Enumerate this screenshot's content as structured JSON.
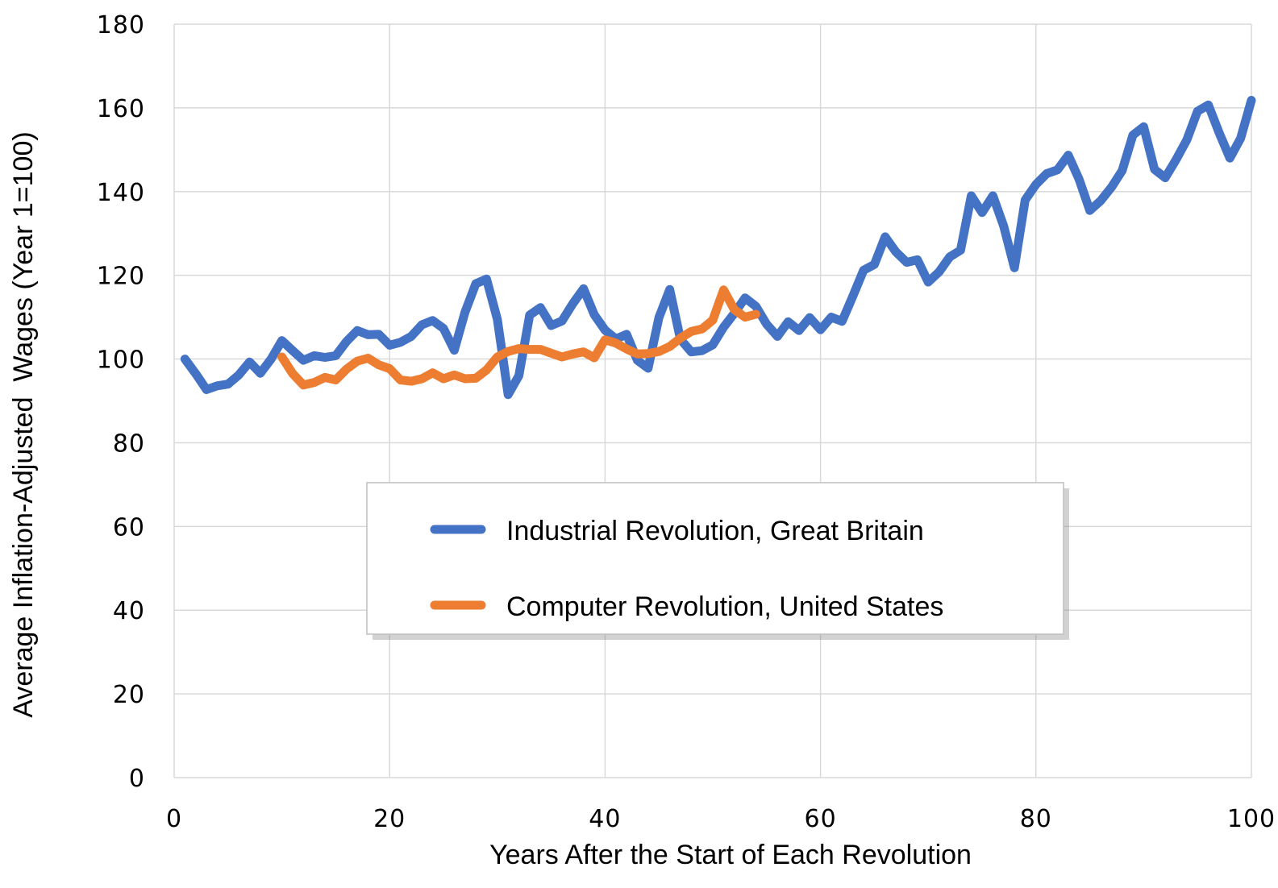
{
  "chart_data": {
    "type": "line",
    "title": "",
    "xlabel": "Years After the Start of Each Revolution",
    "ylabel": "Average Inflation-Adjusted  Wages (Year 1=100)",
    "xlim": [
      0,
      100
    ],
    "ylim": [
      0,
      180
    ],
    "xticks": [
      0,
      20,
      40,
      60,
      80,
      100
    ],
    "yticks": [
      0,
      20,
      40,
      60,
      80,
      100,
      120,
      140,
      160,
      180
    ],
    "grid": true,
    "legend_position": "center",
    "series": [
      {
        "name": "Industrial Revolution, Great Britain",
        "color": "#4472C4",
        "x": [
          1,
          2,
          3,
          4,
          5,
          6,
          7,
          8,
          9,
          10,
          11,
          12,
          13,
          14,
          15,
          16,
          17,
          18,
          19,
          20,
          21,
          22,
          23,
          24,
          25,
          26,
          27,
          28,
          29,
          30,
          31,
          32,
          33,
          34,
          35,
          36,
          37,
          38,
          39,
          40,
          41,
          42,
          43,
          44,
          45,
          46,
          47,
          48,
          49,
          50,
          51,
          52,
          53,
          54,
          55,
          56,
          57,
          58,
          59,
          60,
          61,
          62,
          63,
          64,
          65,
          66,
          67,
          68,
          69,
          70,
          71,
          72,
          73,
          74,
          75,
          76,
          77,
          78,
          79,
          80,
          81,
          82,
          83,
          84,
          85,
          86,
          87,
          88,
          89,
          90,
          91,
          92,
          93,
          94,
          95,
          96,
          97,
          98,
          99,
          100
        ],
        "values": [
          100,
          96.5,
          92.7,
          93.6,
          94,
          96.2,
          99.3,
          96.6,
          100,
          104.4,
          102,
          99.7,
          100.8,
          100.4,
          100.8,
          104.2,
          106.8,
          105.8,
          105.9,
          103.3,
          104,
          105.4,
          108.2,
          109.2,
          107.3,
          102.1,
          111.2,
          118,
          119.1,
          109.5,
          91.5,
          96,
          110.5,
          112.3,
          108,
          109.1,
          113.2,
          116.8,
          110.6,
          106.9,
          104.8,
          105.9,
          99.7,
          97.8,
          109.9,
          116.6,
          104.7,
          101.7,
          102,
          103.4,
          107.6,
          110.9,
          114.6,
          112.6,
          108.3,
          105.4,
          108.9,
          106.8,
          109.9,
          107,
          110,
          109,
          115,
          121.2,
          122.6,
          129.2,
          125.6,
          123.1,
          123.7,
          118.4,
          120.8,
          124.4,
          126,
          139,
          135,
          139,
          131.8,
          121.8,
          138,
          141.7,
          144.3,
          145.2,
          148.7,
          143,
          135.5,
          137.8,
          141,
          145,
          153.5,
          155.5,
          145.3,
          143.3,
          147.6,
          152.3,
          159.2,
          160.7,
          154.1,
          148,
          152.7,
          161.8
        ]
      },
      {
        "name": "Computer Revolution, United States",
        "color": "#ED7D31",
        "x": [
          10,
          11,
          12,
          13,
          14,
          15,
          16,
          17,
          18,
          19,
          20,
          21,
          22,
          23,
          24,
          25,
          26,
          27,
          28,
          29,
          30,
          31,
          32,
          33,
          34,
          35,
          36,
          37,
          38,
          39,
          40,
          41,
          42,
          43,
          44,
          45,
          46,
          47,
          48,
          49,
          50,
          51,
          52,
          53,
          54
        ],
        "values": [
          100.5,
          96.5,
          93.8,
          94.4,
          95.6,
          95,
          97.6,
          99.5,
          100.2,
          98.6,
          97.7,
          95,
          94.7,
          95.3,
          96.7,
          95.3,
          96.2,
          95.3,
          95.4,
          97.4,
          100.5,
          101.8,
          102.5,
          102.3,
          102.3,
          101.4,
          100.5,
          101.2,
          101.7,
          100.3,
          104.6,
          103.8,
          102.4,
          101.2,
          101.3,
          101.8,
          103,
          105,
          106.6,
          107.2,
          109.3,
          116.5,
          111.8,
          110,
          110.7
        ]
      }
    ]
  }
}
